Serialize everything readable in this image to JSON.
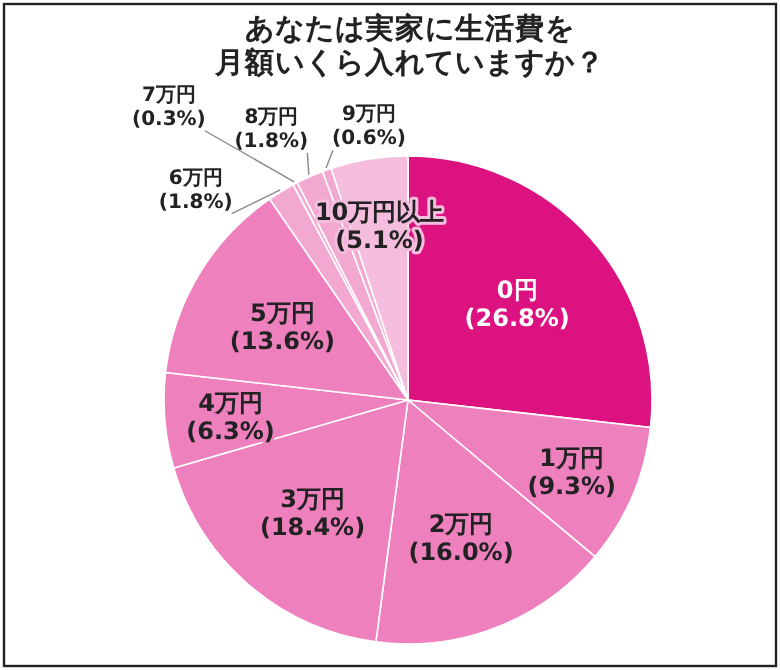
{
  "chart_data": {
    "type": "pie",
    "title": "あなたは実家に生活費を月額いくら入れていますか？",
    "categories": [
      "0円",
      "1万円",
      "2万円",
      "3万円",
      "4万円",
      "5万円",
      "6万円",
      "7万円",
      "8万円",
      "9万円",
      "10万円以上"
    ],
    "values": [
      26.8,
      9.3,
      16.0,
      18.4,
      6.3,
      13.6,
      1.8,
      0.3,
      1.8,
      0.6,
      5.1
    ],
    "value_labels": [
      "(26.8%)",
      "(9.3%)",
      "(16.0%)",
      "(18.4%)",
      "(6.3%)",
      "(13.6%)",
      "(1.8%)",
      "(0.3%)",
      "(1.8%)",
      "(0.6%)",
      "(5.1%)"
    ],
    "colors": [
      "#dc1281",
      "#ef80be",
      "#ef80be",
      "#ef80be",
      "#ef80be",
      "#ef80be",
      "#f3a8d2",
      "#f3a8d2",
      "#f3a8d2",
      "#f3a8d2",
      "#f5bddd"
    ]
  }
}
